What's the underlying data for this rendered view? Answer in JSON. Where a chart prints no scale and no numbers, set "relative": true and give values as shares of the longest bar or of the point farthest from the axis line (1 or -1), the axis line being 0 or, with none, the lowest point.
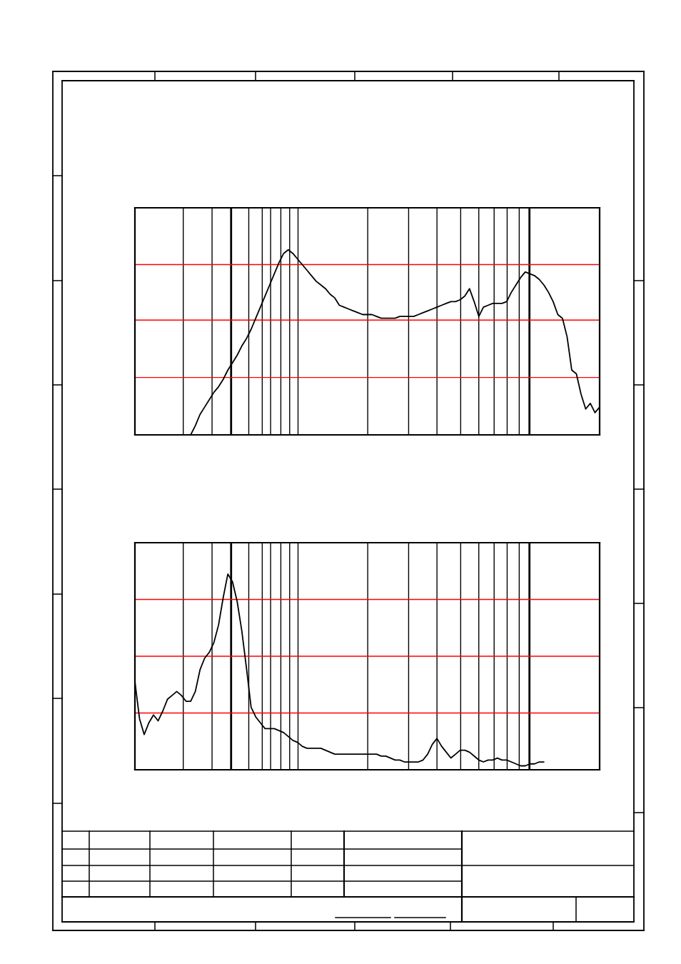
{
  "chart_data": [
    {
      "type": "line",
      "relative": true,
      "categories": [
        null,
        null,
        null,
        null,
        null,
        null,
        null,
        null,
        null,
        null,
        null,
        null,
        null,
        null,
        null,
        null,
        null,
        null,
        null,
        null,
        null,
        null,
        null,
        null,
        null,
        null,
        null,
        null,
        null,
        null,
        null,
        null,
        null,
        null,
        null,
        null,
        null,
        null,
        null,
        null,
        null,
        null,
        null,
        null,
        null,
        null,
        null,
        null,
        null,
        null,
        null,
        null,
        null,
        null,
        null,
        null,
        null,
        null,
        null,
        null,
        null,
        null,
        null,
        null,
        null,
        null,
        null,
        null,
        null,
        null,
        null,
        null,
        null,
        null,
        null,
        null,
        null,
        null,
        null,
        null,
        null,
        null,
        null,
        null,
        null,
        null,
        null,
        null,
        null,
        null,
        null,
        null,
        null,
        null,
        null,
        null,
        null,
        null,
        null,
        null,
        null
      ],
      "series": [
        {
          "color": "#000000",
          "values": [
            null,
            null,
            null,
            null,
            null,
            null,
            null,
            null,
            null,
            null,
            null,
            null,
            0,
            0.05,
            0.11,
            0.15,
            0.19,
            0.23,
            0.26,
            0.3,
            0.35,
            0.39,
            0.43,
            0.48,
            0.52,
            0.57,
            0.63,
            0.69,
            0.75,
            0.81,
            0.87,
            0.93,
            0.98,
            1,
            0.98,
            0.95,
            0.92,
            0.89,
            0.86,
            0.83,
            0.81,
            0.79,
            0.76,
            0.74,
            0.7,
            0.69,
            0.68,
            0.67,
            0.66,
            0.65,
            0.65,
            0.65,
            0.64,
            0.63,
            0.63,
            0.63,
            0.63,
            0.64,
            0.64,
            0.64,
            0.64,
            0.65,
            0.66,
            0.67,
            0.68,
            0.69,
            0.7,
            0.71,
            0.72,
            0.72,
            0.73,
            0.75,
            0.79,
            0.72,
            0.64,
            0.69,
            0.7,
            0.71,
            0.71,
            0.71,
            0.72,
            0.77,
            0.81,
            0.85,
            0.88,
            0.87,
            0.86,
            0.84,
            0.81,
            0.77,
            0.72,
            0.65,
            0.63,
            0.53,
            0.35,
            0.33,
            0.22,
            0.14,
            0.17,
            0.12,
            0.15
          ]
        }
      ],
      "ref_lines": [
        {
          "axis": "y",
          "value": 0.31,
          "color": "#ff0000"
        },
        {
          "axis": "y",
          "value": 0.62,
          "color": "#ff0000"
        },
        {
          "axis": "y",
          "value": 0.92,
          "color": "#ff0000"
        }
      ]
    },
    {
      "type": "line",
      "relative": true,
      "categories": [
        null,
        null,
        null,
        null,
        null,
        null,
        null,
        null,
        null,
        null,
        null,
        null,
        null,
        null,
        null,
        null,
        null,
        null,
        null,
        null,
        null,
        null,
        null,
        null,
        null,
        null,
        null,
        null,
        null,
        null,
        null,
        null,
        null,
        null,
        null,
        null,
        null,
        null,
        null,
        null,
        null,
        null,
        null,
        null,
        null,
        null,
        null,
        null,
        null,
        null,
        null,
        null,
        null,
        null,
        null,
        null,
        null,
        null,
        null,
        null,
        null,
        null,
        null,
        null,
        null,
        null,
        null,
        null,
        null,
        null,
        null,
        null,
        null,
        null,
        null,
        null,
        null,
        null,
        null,
        null,
        null,
        null,
        null,
        null,
        null,
        null,
        null,
        null,
        null,
        null,
        null,
        null,
        null,
        null,
        null,
        null,
        null,
        null,
        null,
        null,
        null
      ],
      "series": [
        {
          "color": "#000000",
          "values": [
            0.45,
            0.26,
            0.18,
            0.24,
            0.28,
            0.25,
            0.3,
            0.36,
            0.38,
            0.4,
            0.38,
            0.35,
            0.35,
            0.4,
            0.51,
            0.57,
            0.6,
            0.65,
            0.74,
            0.88,
            1,
            0.96,
            0.86,
            0.71,
            0.52,
            0.32,
            0.27,
            0.24,
            0.21,
            0.21,
            0.21,
            0.2,
            0.19,
            0.17,
            0.15,
            0.14,
            0.12,
            0.11,
            0.11,
            0.11,
            0.11,
            0.1,
            0.09,
            0.08,
            0.08,
            0.08,
            0.08,
            0.08,
            0.08,
            0.08,
            0.08,
            0.08,
            0.08,
            0.07,
            0.07,
            0.06,
            0.05,
            0.05,
            0.04,
            0.04,
            0.04,
            0.04,
            0.05,
            0.08,
            0.13,
            0.16,
            0.12,
            0.09,
            0.06,
            0.08,
            0.1,
            0.1,
            0.09,
            0.07,
            0.05,
            0.04,
            0.05,
            0.05,
            0.06,
            0.05,
            0.05,
            0.04,
            0.03,
            0.02,
            0.02,
            0.03,
            0.03,
            0.04,
            0.04,
            null,
            null,
            null,
            null,
            null,
            null,
            null,
            null,
            null,
            null,
            null,
            null
          ]
        }
      ],
      "ref_lines": [
        {
          "axis": "y",
          "value": 0.29,
          "color": "#ff0000"
        },
        {
          "axis": "y",
          "value": 0.58,
          "color": "#ff0000"
        },
        {
          "axis": "y",
          "value": 0.87,
          "color": "#ff0000"
        }
      ]
    }
  ]
}
